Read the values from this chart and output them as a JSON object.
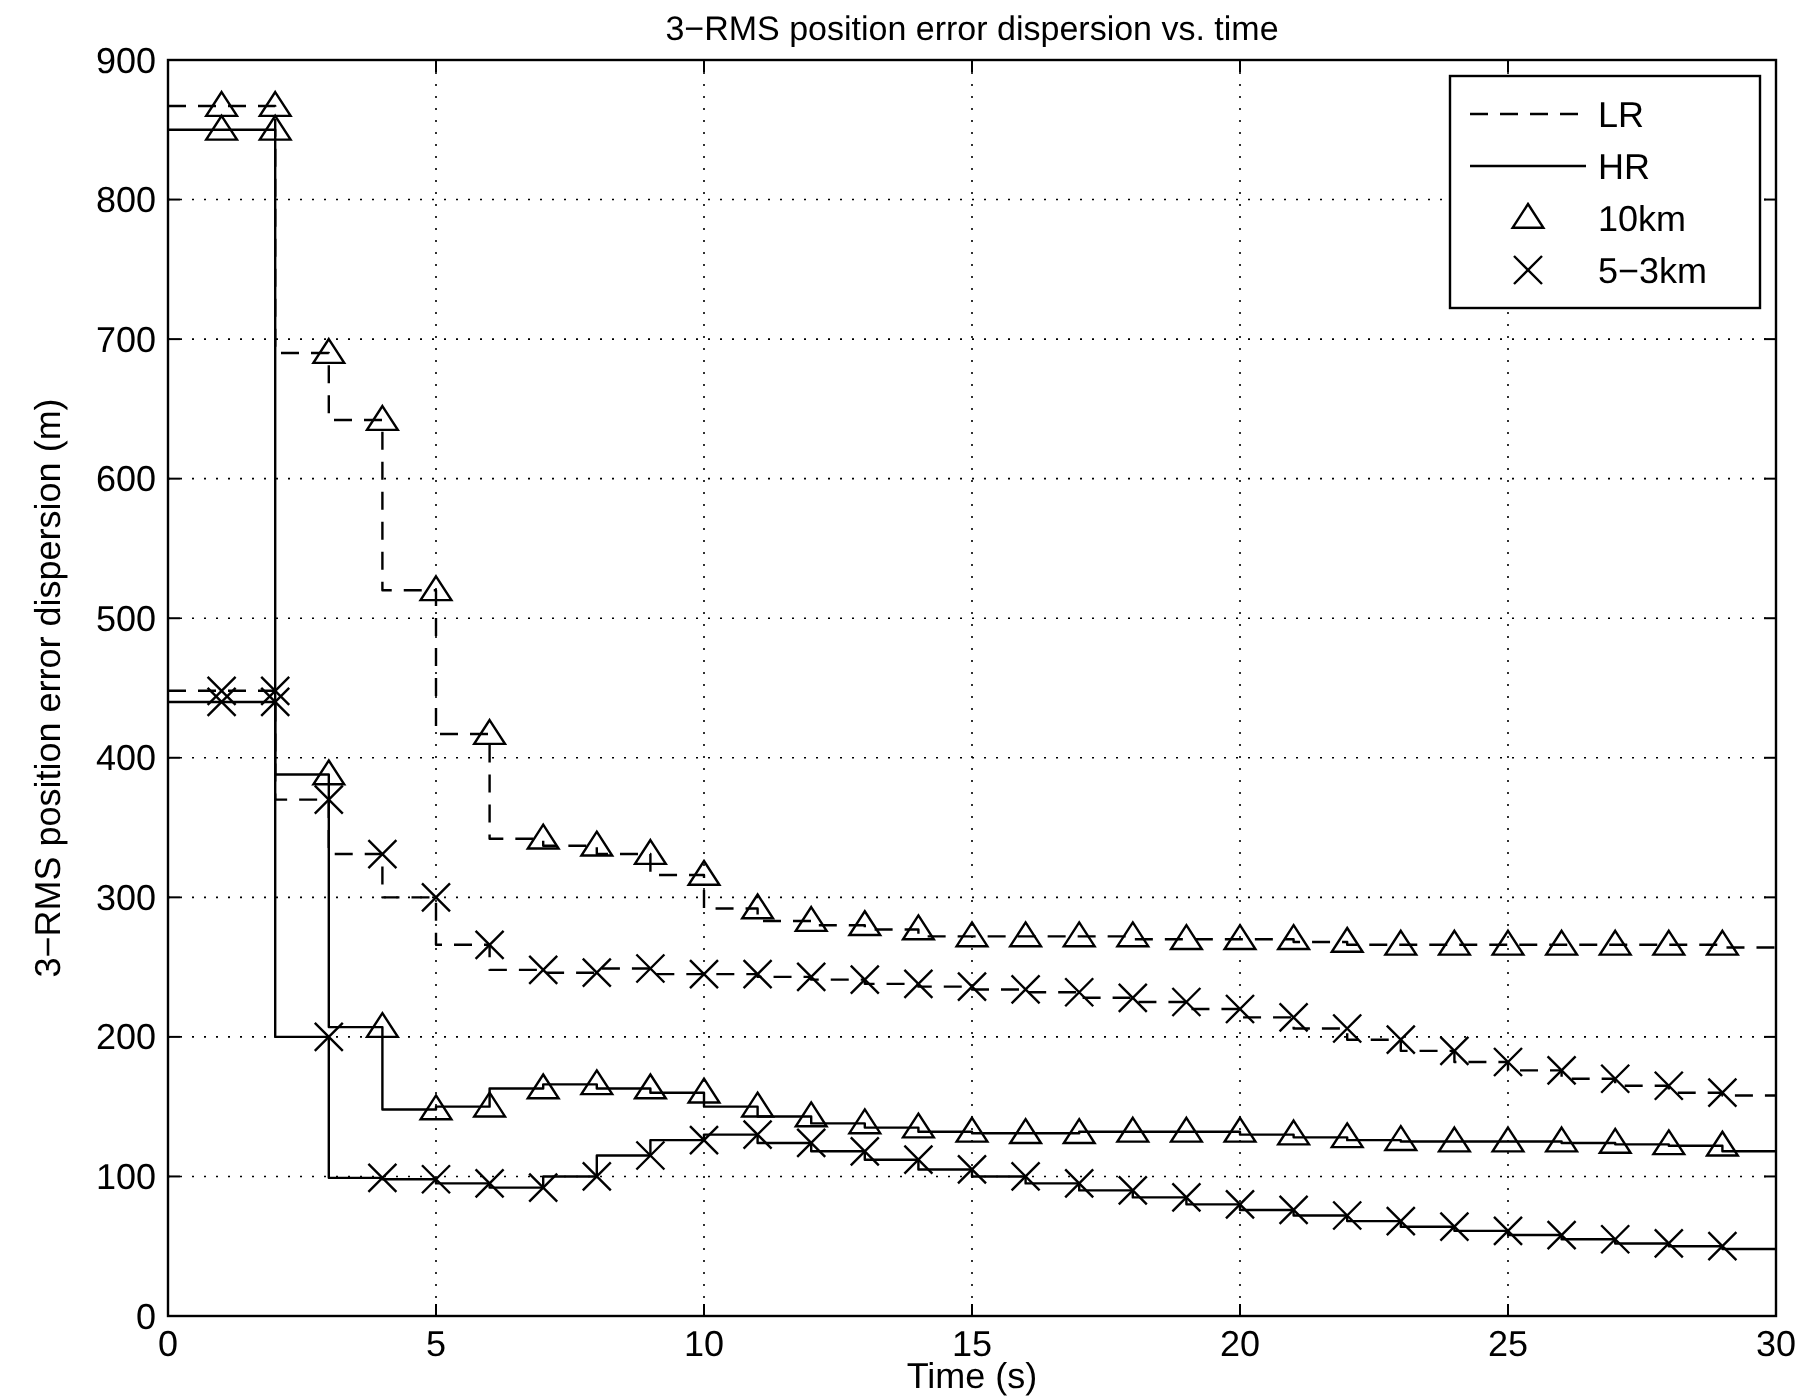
{
  "chart_data": {
    "type": "step",
    "title": "3−RMS position error dispersion vs. time",
    "xlabel": "Time (s)",
    "ylabel": "3−RMS position error dispersion (m)",
    "xlim": [
      0,
      30
    ],
    "xticks": [
      0,
      5,
      10,
      15,
      20,
      25,
      30
    ],
    "ylim": [
      0,
      900
    ],
    "yticks": [
      0,
      100,
      200,
      300,
      400,
      500,
      600,
      700,
      800,
      900
    ],
    "grid": true,
    "legend": "top right",
    "x": [
      0,
      1,
      2,
      3,
      4,
      5,
      6,
      7,
      8,
      9,
      10,
      11,
      12,
      13,
      14,
      15,
      16,
      17,
      18,
      19,
      20,
      21,
      22,
      23,
      24,
      25,
      26,
      27,
      28,
      29,
      30
    ],
    "series": [
      {
        "name": "LR",
        "color": "#000000",
        "line_style": "dashed",
        "marker": "none",
        "values": [
          867,
          867,
          867,
          690,
          642,
          520,
          417,
          342,
          337,
          331,
          316,
          292,
          283,
          280,
          277,
          272,
          272,
          272,
          272,
          270,
          270,
          270,
          268,
          266,
          266,
          266,
          266,
          266,
          266,
          266,
          264
        ]
      },
      {
        "name": "HR",
        "color": "#000000",
        "line_style": "solid",
        "marker": "none",
        "values": [
          850,
          850,
          850,
          388,
          207,
          148,
          150,
          163,
          166,
          163,
          160,
          150,
          143,
          138,
          135,
          132,
          131,
          131,
          132,
          132,
          132,
          130,
          128,
          126,
          125,
          125,
          125,
          124,
          123,
          122,
          118
        ]
      },
      {
        "color": "#000000",
        "line_style": "dashed",
        "marker": "none",
        "values": [
          448,
          448,
          448,
          370,
          331,
          300,
          266,
          248,
          246,
          249,
          245,
          245,
          243,
          241,
          238,
          236,
          234,
          232,
          228,
          225,
          220,
          214,
          206,
          198,
          190,
          182,
          176,
          170,
          165,
          160,
          158
        ]
      },
      {
        "color": "#000000",
        "line_style": "solid",
        "marker": "none",
        "values": [
          440,
          440,
          440,
          200,
          99,
          98,
          95,
          92,
          100,
          115,
          126,
          130,
          124,
          118,
          112,
          105,
          100,
          95,
          90,
          85,
          80,
          76,
          72,
          68,
          64,
          61,
          58,
          55,
          52,
          50,
          48
        ]
      },
      {
        "name": "10km",
        "type": "scatter",
        "color": "#000000",
        "marker": "triangle",
        "x": [
          1,
          2,
          3,
          4,
          5,
          6,
          7,
          8,
          9,
          10,
          11,
          12,
          13,
          14,
          15,
          16,
          17,
          18,
          19,
          20,
          21,
          22,
          23,
          24,
          25,
          26,
          27,
          28,
          29,
          1,
          2,
          3,
          4,
          5,
          6,
          7,
          8,
          9,
          10,
          11,
          12,
          13,
          14,
          15,
          16,
          17,
          18,
          19,
          20,
          21,
          22,
          23,
          24,
          25,
          26,
          27,
          28,
          29
        ],
        "values": [
          867,
          867,
          690,
          642,
          520,
          417,
          342,
          337,
          331,
          316,
          292,
          283,
          280,
          277,
          272,
          272,
          272,
          272,
          270,
          270,
          270,
          268,
          266,
          266,
          266,
          266,
          266,
          266,
          266,
          850,
          850,
          388,
          207,
          148,
          150,
          163,
          166,
          163,
          160,
          150,
          143,
          138,
          135,
          132,
          131,
          131,
          132,
          132,
          132,
          130,
          128,
          126,
          125,
          125,
          125,
          124,
          123,
          122
        ]
      },
      {
        "name": "5−3km",
        "type": "scatter",
        "color": "#000000",
        "marker": "cross",
        "x": [
          1,
          2,
          3,
          4,
          5,
          6,
          7,
          8,
          9,
          10,
          11,
          12,
          13,
          14,
          15,
          16,
          17,
          18,
          19,
          20,
          21,
          22,
          23,
          24,
          25,
          26,
          27,
          28,
          29,
          1,
          2,
          3,
          4,
          5,
          6,
          7,
          8,
          9,
          10,
          11,
          12,
          13,
          14,
          15,
          16,
          17,
          18,
          19,
          20,
          21,
          22,
          23,
          24,
          25,
          26,
          27,
          28,
          29
        ],
        "values": [
          448,
          448,
          370,
          331,
          300,
          266,
          248,
          246,
          249,
          245,
          245,
          243,
          241,
          238,
          236,
          234,
          232,
          228,
          225,
          220,
          214,
          206,
          198,
          190,
          182,
          176,
          170,
          165,
          160,
          440,
          440,
          200,
          99,
          98,
          95,
          92,
          100,
          115,
          126,
          130,
          124,
          118,
          112,
          105,
          100,
          95,
          90,
          85,
          80,
          76,
          72,
          68,
          64,
          61,
          58,
          55,
          52,
          50
        ]
      }
    ]
  }
}
